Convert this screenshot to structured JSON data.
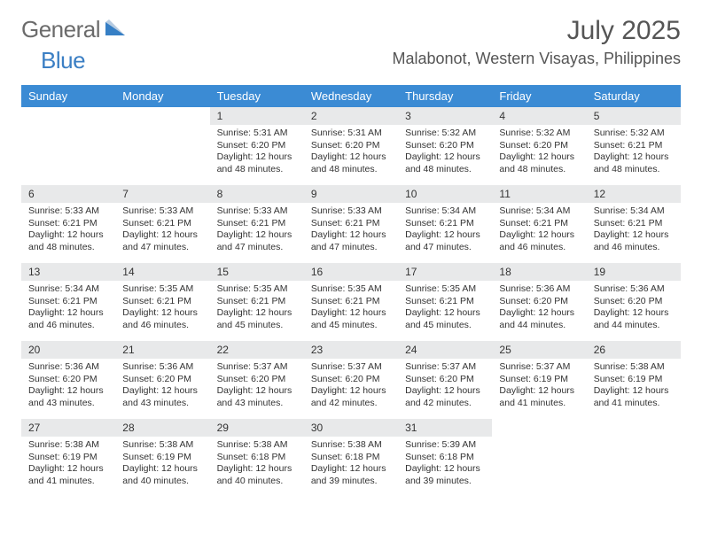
{
  "logo": {
    "general": "General",
    "blue": "Blue",
    "accent_color": "#3b8bd4"
  },
  "title": "July 2025",
  "location": "Malabonot, Western Visayas, Philippines",
  "weekdays": [
    "Sunday",
    "Monday",
    "Tuesday",
    "Wednesday",
    "Thursday",
    "Friday",
    "Saturday"
  ],
  "header_bg": "#3b8bd4",
  "daynum_bg": "#e8e9ea",
  "weeks": [
    [
      {
        "n": "",
        "lines": []
      },
      {
        "n": "",
        "lines": []
      },
      {
        "n": "1",
        "lines": [
          "Sunrise: 5:31 AM",
          "Sunset: 6:20 PM",
          "Daylight: 12 hours and 48 minutes."
        ]
      },
      {
        "n": "2",
        "lines": [
          "Sunrise: 5:31 AM",
          "Sunset: 6:20 PM",
          "Daylight: 12 hours and 48 minutes."
        ]
      },
      {
        "n": "3",
        "lines": [
          "Sunrise: 5:32 AM",
          "Sunset: 6:20 PM",
          "Daylight: 12 hours and 48 minutes."
        ]
      },
      {
        "n": "4",
        "lines": [
          "Sunrise: 5:32 AM",
          "Sunset: 6:20 PM",
          "Daylight: 12 hours and 48 minutes."
        ]
      },
      {
        "n": "5",
        "lines": [
          "Sunrise: 5:32 AM",
          "Sunset: 6:21 PM",
          "Daylight: 12 hours and 48 minutes."
        ]
      }
    ],
    [
      {
        "n": "6",
        "lines": [
          "Sunrise: 5:33 AM",
          "Sunset: 6:21 PM",
          "Daylight: 12 hours and 48 minutes."
        ]
      },
      {
        "n": "7",
        "lines": [
          "Sunrise: 5:33 AM",
          "Sunset: 6:21 PM",
          "Daylight: 12 hours and 47 minutes."
        ]
      },
      {
        "n": "8",
        "lines": [
          "Sunrise: 5:33 AM",
          "Sunset: 6:21 PM",
          "Daylight: 12 hours and 47 minutes."
        ]
      },
      {
        "n": "9",
        "lines": [
          "Sunrise: 5:33 AM",
          "Sunset: 6:21 PM",
          "Daylight: 12 hours and 47 minutes."
        ]
      },
      {
        "n": "10",
        "lines": [
          "Sunrise: 5:34 AM",
          "Sunset: 6:21 PM",
          "Daylight: 12 hours and 47 minutes."
        ]
      },
      {
        "n": "11",
        "lines": [
          "Sunrise: 5:34 AM",
          "Sunset: 6:21 PM",
          "Daylight: 12 hours and 46 minutes."
        ]
      },
      {
        "n": "12",
        "lines": [
          "Sunrise: 5:34 AM",
          "Sunset: 6:21 PM",
          "Daylight: 12 hours and 46 minutes."
        ]
      }
    ],
    [
      {
        "n": "13",
        "lines": [
          "Sunrise: 5:34 AM",
          "Sunset: 6:21 PM",
          "Daylight: 12 hours and 46 minutes."
        ]
      },
      {
        "n": "14",
        "lines": [
          "Sunrise: 5:35 AM",
          "Sunset: 6:21 PM",
          "Daylight: 12 hours and 46 minutes."
        ]
      },
      {
        "n": "15",
        "lines": [
          "Sunrise: 5:35 AM",
          "Sunset: 6:21 PM",
          "Daylight: 12 hours and 45 minutes."
        ]
      },
      {
        "n": "16",
        "lines": [
          "Sunrise: 5:35 AM",
          "Sunset: 6:21 PM",
          "Daylight: 12 hours and 45 minutes."
        ]
      },
      {
        "n": "17",
        "lines": [
          "Sunrise: 5:35 AM",
          "Sunset: 6:21 PM",
          "Daylight: 12 hours and 45 minutes."
        ]
      },
      {
        "n": "18",
        "lines": [
          "Sunrise: 5:36 AM",
          "Sunset: 6:20 PM",
          "Daylight: 12 hours and 44 minutes."
        ]
      },
      {
        "n": "19",
        "lines": [
          "Sunrise: 5:36 AM",
          "Sunset: 6:20 PM",
          "Daylight: 12 hours and 44 minutes."
        ]
      }
    ],
    [
      {
        "n": "20",
        "lines": [
          "Sunrise: 5:36 AM",
          "Sunset: 6:20 PM",
          "Daylight: 12 hours and 43 minutes."
        ]
      },
      {
        "n": "21",
        "lines": [
          "Sunrise: 5:36 AM",
          "Sunset: 6:20 PM",
          "Daylight: 12 hours and 43 minutes."
        ]
      },
      {
        "n": "22",
        "lines": [
          "Sunrise: 5:37 AM",
          "Sunset: 6:20 PM",
          "Daylight: 12 hours and 43 minutes."
        ]
      },
      {
        "n": "23",
        "lines": [
          "Sunrise: 5:37 AM",
          "Sunset: 6:20 PM",
          "Daylight: 12 hours and 42 minutes."
        ]
      },
      {
        "n": "24",
        "lines": [
          "Sunrise: 5:37 AM",
          "Sunset: 6:20 PM",
          "Daylight: 12 hours and 42 minutes."
        ]
      },
      {
        "n": "25",
        "lines": [
          "Sunrise: 5:37 AM",
          "Sunset: 6:19 PM",
          "Daylight: 12 hours and 41 minutes."
        ]
      },
      {
        "n": "26",
        "lines": [
          "Sunrise: 5:38 AM",
          "Sunset: 6:19 PM",
          "Daylight: 12 hours and 41 minutes."
        ]
      }
    ],
    [
      {
        "n": "27",
        "lines": [
          "Sunrise: 5:38 AM",
          "Sunset: 6:19 PM",
          "Daylight: 12 hours and 41 minutes."
        ]
      },
      {
        "n": "28",
        "lines": [
          "Sunrise: 5:38 AM",
          "Sunset: 6:19 PM",
          "Daylight: 12 hours and 40 minutes."
        ]
      },
      {
        "n": "29",
        "lines": [
          "Sunrise: 5:38 AM",
          "Sunset: 6:18 PM",
          "Daylight: 12 hours and 40 minutes."
        ]
      },
      {
        "n": "30",
        "lines": [
          "Sunrise: 5:38 AM",
          "Sunset: 6:18 PM",
          "Daylight: 12 hours and 39 minutes."
        ]
      },
      {
        "n": "31",
        "lines": [
          "Sunrise: 5:39 AM",
          "Sunset: 6:18 PM",
          "Daylight: 12 hours and 39 minutes."
        ]
      },
      {
        "n": "",
        "lines": []
      },
      {
        "n": "",
        "lines": []
      }
    ]
  ]
}
